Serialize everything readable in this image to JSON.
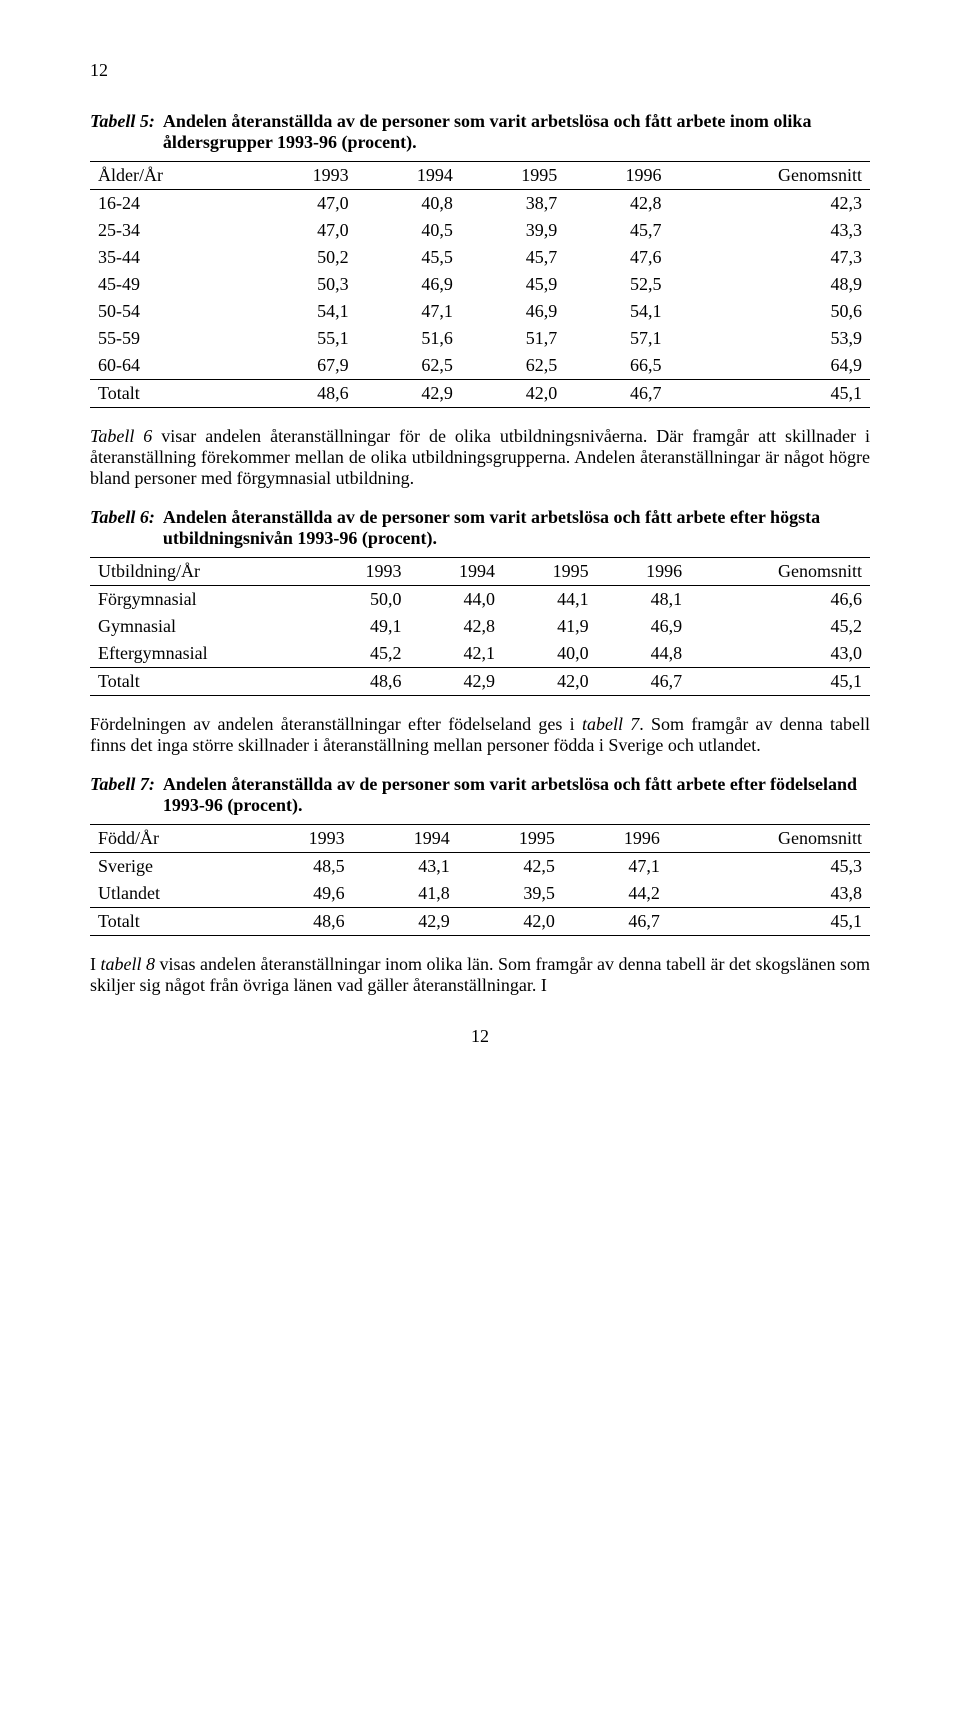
{
  "page_top": "12",
  "page_bottom": "12",
  "tab5": {
    "label": "Tabell 5:",
    "title": "Andelen återanställda av de personer som varit arbetslösa och fått arbete inom olika åldersgrupper 1993-96 (procent).",
    "headers": [
      "Ålder/År",
      "1993",
      "1994",
      "1995",
      "1996",
      "Genomsnitt"
    ],
    "rows": [
      [
        "16-24",
        "47,0",
        "40,8",
        "38,7",
        "42,8",
        "42,3"
      ],
      [
        "25-34",
        "47,0",
        "40,5",
        "39,9",
        "45,7",
        "43,3"
      ],
      [
        "35-44",
        "50,2",
        "45,5",
        "45,7",
        "47,6",
        "47,3"
      ],
      [
        "45-49",
        "50,3",
        "46,9",
        "45,9",
        "52,5",
        "48,9"
      ],
      [
        "50-54",
        "54,1",
        "47,1",
        "46,9",
        "54,1",
        "50,6"
      ],
      [
        "55-59",
        "55,1",
        "51,6",
        "51,7",
        "57,1",
        "53,9"
      ],
      [
        "60-64",
        "67,9",
        "62,5",
        "62,5",
        "66,5",
        "64,9"
      ]
    ],
    "total": [
      "Totalt",
      "48,6",
      "42,9",
      "42,0",
      "46,7",
      "45,1"
    ]
  },
  "para1_a": "Tabell 6",
  "para1_b": " visar andelen återanställningar för de olika utbildningsnivåerna. Där framgår att skillnader i återanställning förekommer mellan de olika utbildningsgrupperna. Andelen återanställningar är något högre bland personer med förgymnasial utbildning.",
  "tab6": {
    "label": "Tabell 6:",
    "title": "Andelen återanställda av de personer som varit arbetslösa och fått arbete efter högsta utbildningsnivån 1993-96 (procent).",
    "headers": [
      "Utbildning/År",
      "1993",
      "1994",
      "1995",
      "1996",
      "Genomsnitt"
    ],
    "rows": [
      [
        "Förgymnasial",
        "50,0",
        "44,0",
        "44,1",
        "48,1",
        "46,6"
      ],
      [
        "Gymnasial",
        "49,1",
        "42,8",
        "41,9",
        "46,9",
        "45,2"
      ],
      [
        "Eftergymnasial",
        "45,2",
        "42,1",
        "40,0",
        "44,8",
        "43,0"
      ]
    ],
    "total": [
      "Totalt",
      "48,6",
      "42,9",
      "42,0",
      "46,7",
      "45,1"
    ]
  },
  "para2_a": "Fördelningen av andelen återanställningar efter födelseland ges i ",
  "para2_b": "tabell 7",
  "para2_c": ". Som framgår av denna tabell finns det inga större skillnader i återanställning mellan personer födda i Sverige och utlandet.",
  "tab7": {
    "label": "Tabell 7:",
    "title": "Andelen återanställda av de personer som varit arbetslösa och fått arbete efter födelseland 1993-96 (procent).",
    "headers": [
      "Född/År",
      "1993",
      "1994",
      "1995",
      "1996",
      "Genomsnitt"
    ],
    "rows": [
      [
        "Sverige",
        "48,5",
        "43,1",
        "42,5",
        "47,1",
        "45,3"
      ],
      [
        "Utlandet",
        "49,6",
        "41,8",
        "39,5",
        "44,2",
        "43,8"
      ]
    ],
    "total": [
      "Totalt",
      "48,6",
      "42,9",
      "42,0",
      "46,7",
      "45,1"
    ]
  },
  "para3_a": "I ",
  "para3_b": "tabell 8",
  "para3_c": " visas andelen återanställningar inom olika län. Som framgår av denna tabell är det skogslänen som skiljer sig något från övriga länen vad gäller återanställningar. I"
}
